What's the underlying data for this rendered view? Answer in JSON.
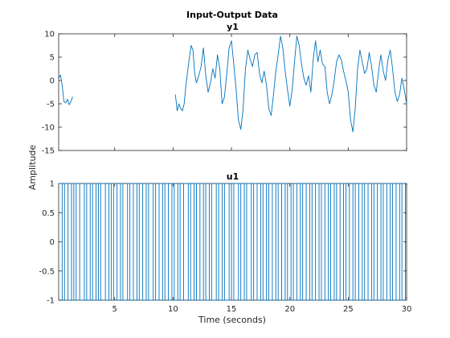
{
  "figure": {
    "title": "Input-Output Data",
    "xlabel": "Time (seconds)",
    "ylabel": "Amplitude",
    "line_color": "#0072BD"
  },
  "chart_data": [
    {
      "type": "line",
      "title": "y1",
      "xlim": [
        0.2,
        30
      ],
      "ylim": [
        -15,
        10
      ],
      "xticks": [
        5,
        10,
        15,
        20,
        25,
        30
      ],
      "xtick_labels": [
        "",
        "",
        "",
        "",
        "",
        ""
      ],
      "yticks": [
        -15,
        -10,
        -5,
        0,
        5,
        10
      ],
      "ytick_labels": [
        "-15",
        "-10",
        "-5",
        "0",
        "5",
        "10"
      ],
      "grid": false,
      "series": [
        {
          "segments": [
            {
              "x": [
                0.2,
                0.35,
                0.5,
                0.65,
                0.8,
                0.95,
                1.1,
                1.25,
                1.4
              ],
              "y": [
                0.5,
                1.2,
                -1.0,
                -4.5,
                -4.8,
                -4.0,
                -5.2,
                -4.5,
                -3.5
              ]
            },
            {
              "x": [
                10.2,
                10.35,
                10.5,
                10.65,
                10.8,
                10.95,
                11.1,
                11.25,
                11.4,
                11.55,
                11.7,
                11.85,
                12.0,
                12.2,
                12.4,
                12.6,
                12.8,
                13.0,
                13.2,
                13.4,
                13.6,
                13.8,
                14.0,
                14.2,
                14.4,
                14.6,
                14.8,
                15.0,
                15.2,
                15.4,
                15.6,
                15.8,
                16.0,
                16.2,
                16.4,
                16.6,
                16.8,
                17.0,
                17.2,
                17.4,
                17.6,
                17.8,
                18.0,
                18.2,
                18.4,
                18.6,
                18.8,
                19.0,
                19.2,
                19.4,
                19.6,
                19.8,
                20.0,
                20.2,
                20.4,
                20.6,
                20.8,
                21.0,
                21.2,
                21.4,
                21.6,
                21.8,
                22.0,
                22.2,
                22.4,
                22.6,
                22.8,
                23.0,
                23.2,
                23.4,
                23.6,
                23.8,
                24.0,
                24.2,
                24.4,
                24.6,
                24.8,
                25.0,
                25.2,
                25.4,
                25.6,
                25.8,
                26.0,
                26.2,
                26.4,
                26.6,
                26.8,
                27.0,
                27.2,
                27.4,
                27.6,
                27.8,
                28.0,
                28.2,
                28.4,
                28.6,
                28.8,
                29.0,
                29.2,
                29.4,
                29.6,
                29.8,
                30.0
              ],
              "y": [
                -3.0,
                -6.5,
                -5.0,
                -6.0,
                -6.5,
                -5.0,
                -1.0,
                2.0,
                5.0,
                7.5,
                6.5,
                1.5,
                -0.5,
                1.0,
                3.0,
                7.0,
                1.0,
                -2.5,
                -0.5,
                2.5,
                0.5,
                5.5,
                2.5,
                -5.0,
                -3.5,
                1.5,
                7.0,
                8.5,
                3.5,
                -2.0,
                -8.5,
                -10.5,
                -6.0,
                2.5,
                6.5,
                4.5,
                3.0,
                5.5,
                6.0,
                1.5,
                -0.5,
                2.0,
                -1.0,
                -6.0,
                -7.5,
                -3.0,
                2.0,
                5.5,
                9.5,
                7.0,
                2.0,
                -2.0,
                -5.5,
                -2.0,
                4.0,
                9.5,
                7.5,
                3.5,
                0.5,
                -1.0,
                1.0,
                -2.5,
                4.5,
                8.5,
                4.0,
                6.5,
                3.5,
                3.0,
                -2.5,
                -5.0,
                -3.0,
                0.0,
                4.0,
                5.5,
                4.5,
                2.0,
                0.0,
                -2.5,
                -8.5,
                -11.0,
                -6.0,
                2.5,
                6.5,
                4.0,
                1.5,
                2.5,
                6.0,
                3.0,
                -1.0,
                -2.5,
                2.0,
                5.5,
                2.0,
                0.0,
                4.5,
                6.5,
                2.5,
                -2.5,
                -4.5,
                -3.0,
                0.5,
                -2.0,
                -5.0
              ]
            }
          ]
        }
      ]
    },
    {
      "type": "line",
      "title": "u1",
      "xlim": [
        0.2,
        30
      ],
      "ylim": [
        -1,
        1
      ],
      "xticks": [
        5,
        10,
        15,
        20,
        25,
        30
      ],
      "xtick_labels": [
        "5",
        "10",
        "15",
        "20",
        "25",
        "30"
      ],
      "yticks": [
        -1,
        -0.5,
        0,
        0.5,
        1
      ],
      "ytick_labels": [
        "-1",
        "-0.5",
        "0",
        "0.5",
        "1"
      ],
      "grid": false,
      "series": [
        {
          "switch_times": [
            0.2,
            0.5,
            0.7,
            1.0,
            1.3,
            1.5,
            1.7,
            2.0,
            2.4,
            2.6,
            2.9,
            3.1,
            3.4,
            3.6,
            3.8,
            4.2,
            4.5,
            4.7,
            4.9,
            5.2,
            5.5,
            5.7,
            6.1,
            6.3,
            6.6,
            6.9,
            7.1,
            7.4,
            7.7,
            7.9,
            8.3,
            8.5,
            8.8,
            9.1,
            9.3,
            9.6,
            9.9,
            10.1,
            10.4,
            10.6,
            10.9,
            11.3,
            11.5,
            11.8,
            12.0,
            12.3,
            12.6,
            12.8,
            13.1,
            13.3,
            13.7,
            13.9,
            14.2,
            14.4,
            14.8,
            15.0,
            15.2,
            15.6,
            15.8,
            16.1,
            16.3,
            16.7,
            16.9,
            17.2,
            17.5,
            17.7,
            18.0,
            18.2,
            18.5,
            18.8,
            19.0,
            19.3,
            19.6,
            19.8,
            20.1,
            20.3,
            20.6,
            20.9,
            21.1,
            21.4,
            21.7,
            21.9,
            22.2,
            22.5,
            22.7,
            23.0,
            23.3,
            23.5,
            23.8,
            24.0,
            24.3,
            24.6,
            24.8,
            25.1,
            25.4,
            25.6,
            25.9,
            26.2,
            26.4,
            26.7,
            27.0,
            27.2,
            27.5,
            27.8,
            28.0,
            28.3,
            28.6,
            28.8,
            29.1,
            29.4,
            29.6,
            29.9
          ],
          "initial_level": 1
        }
      ]
    }
  ]
}
